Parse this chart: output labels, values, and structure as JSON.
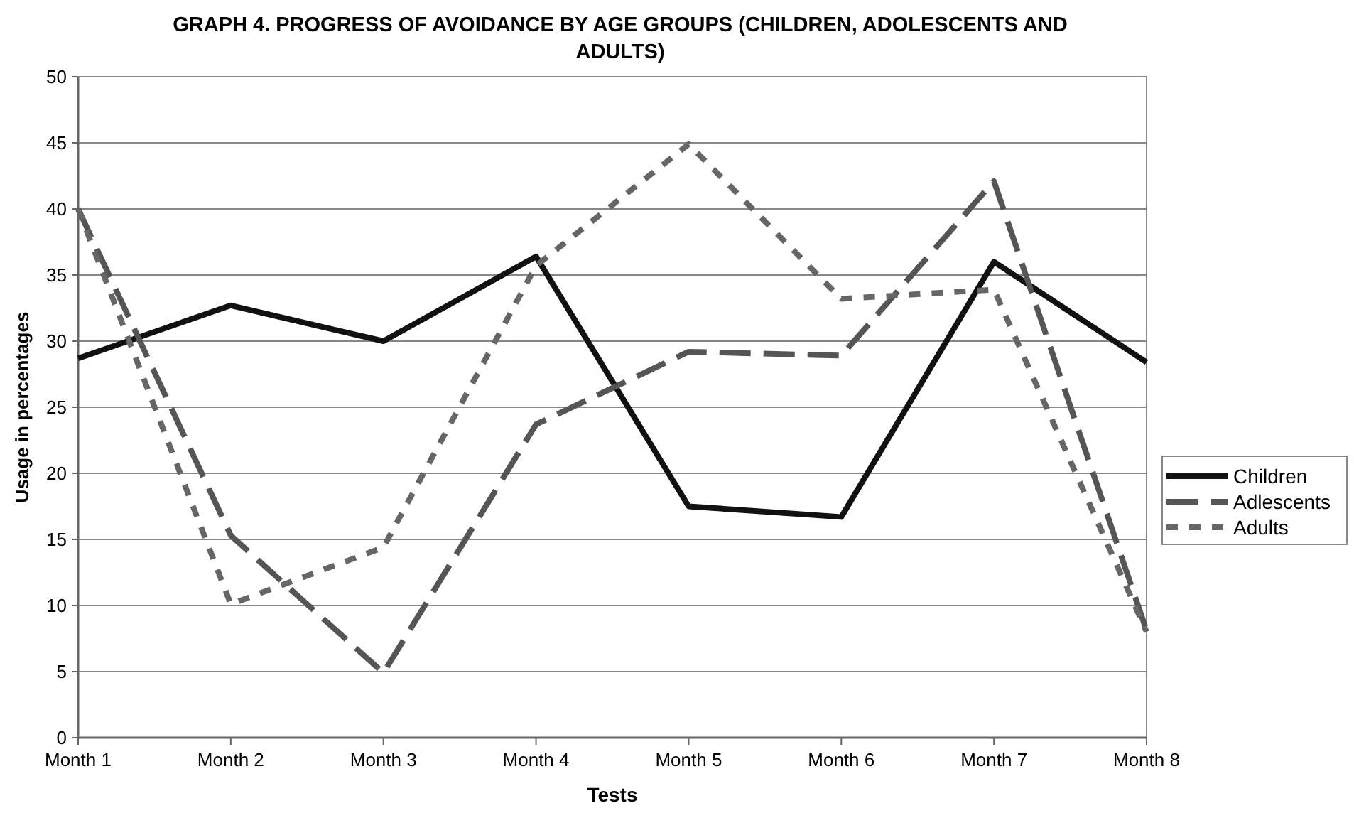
{
  "chart_data": {
    "type": "line",
    "title": "GRAPH 4. PROGRESS OF AVOIDANCE BY AGE GROUPS (CHILDREN, ADOLESCENTS AND ADULTS)",
    "xlabel": "Tests",
    "ylabel": "Usage in percentages",
    "categories": [
      "Month 1",
      "Month 2",
      "Month 3",
      "Month 4",
      "Month 5",
      "Month 6",
      "Month 7",
      "Month 8"
    ],
    "series": [
      {
        "name": "Children",
        "color": "#111111",
        "line_style": "solid",
        "values": [
          28.7,
          32.7,
          30.0,
          36.4,
          17.5,
          16.7,
          36.0,
          28.4
        ]
      },
      {
        "name": "Adlescents",
        "color": "#555555",
        "line_style": "dashed",
        "values": [
          40.0,
          15.3,
          4.9,
          23.7,
          29.2,
          28.9,
          42.1,
          8.1
        ]
      },
      {
        "name": "Adults",
        "color": "#666666",
        "line_style": "dotted",
        "values": [
          40.0,
          10.1,
          14.4,
          35.7,
          44.9,
          33.2,
          33.9,
          8.0
        ]
      }
    ],
    "ylim": [
      0,
      50
    ],
    "yticks": [
      0,
      5,
      10,
      15,
      20,
      25,
      30,
      35,
      40,
      45,
      50
    ],
    "grid": "y",
    "legend": "right",
    "marker": "none"
  }
}
